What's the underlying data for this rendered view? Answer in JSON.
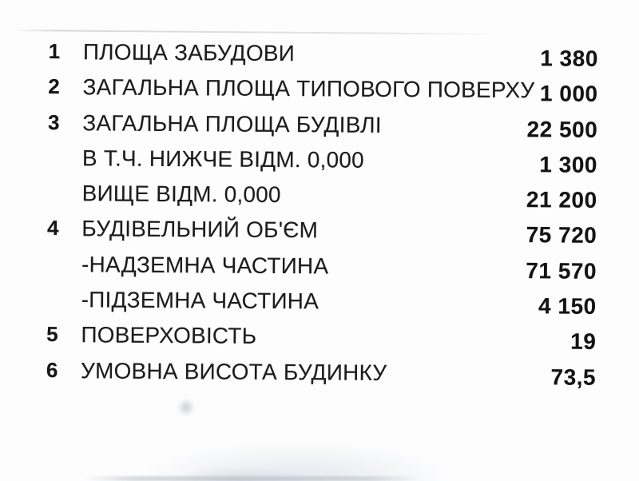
{
  "colors": {
    "paper": "#fdfdfe",
    "ink": "#1a1a1a",
    "bottom_shadow": "#cdd7e0"
  },
  "table": {
    "rows": [
      {
        "num": "1",
        "label": "ПЛОЩА ЗАБУДОВИ",
        "value": "1 380"
      },
      {
        "num": "2",
        "label": "ЗАГАЛЬНА ПЛОЩА ТИПОВОГО ПОВЕРХУ",
        "value": "1 000"
      },
      {
        "num": "3",
        "label": "ЗАГАЛЬНА ПЛОЩА БУДІВЛІ",
        "value": "22 500"
      },
      {
        "num": "",
        "label": "В Т.Ч. НИЖЧЕ ВІДМ. 0,000",
        "value": "1 300"
      },
      {
        "num": "",
        "label": "ВИЩЕ ВІДМ. 0,000",
        "value": "21 200"
      },
      {
        "num": "4",
        "label": "БУДІВЕЛЬНИЙ ОБ'ЄМ",
        "value": "75 720"
      },
      {
        "num": "",
        "label": "-НАДЗЕМНА ЧАСТИНА",
        "value": "71 570"
      },
      {
        "num": "",
        "label": "-ПІДЗЕМНА ЧАСТИНА",
        "value": "4 150"
      },
      {
        "num": "5",
        "label": "ПОВЕРХОВІСТЬ",
        "value": "19"
      },
      {
        "num": "6",
        "label": "УМОВНА ВИСОТА БУДИНКУ",
        "value": "73,5"
      }
    ]
  }
}
